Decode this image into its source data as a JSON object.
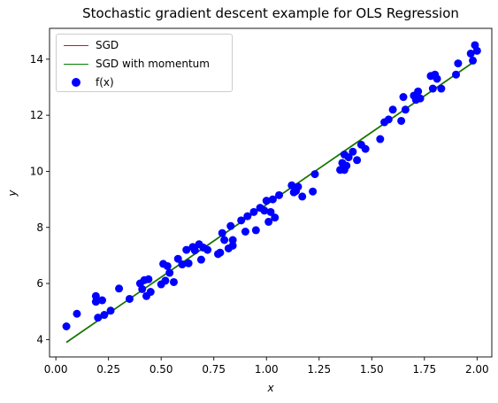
{
  "chart_data": {
    "type": "scatter",
    "title": "Stochastic gradient descent example for OLS Regression",
    "xlabel": "x",
    "ylabel": "y",
    "xlim": [
      -0.03,
      2.07
    ],
    "ylim": [
      3.38,
      15.1
    ],
    "x_ticks": [
      0.0,
      0.25,
      0.5,
      0.75,
      1.0,
      1.25,
      1.5,
      1.75,
      2.0
    ],
    "x_tick_labels": [
      "0.00",
      "0.25",
      "0.50",
      "0.75",
      "1.00",
      "1.25",
      "1.50",
      "1.75",
      "2.00"
    ],
    "y_ticks": [
      4,
      6,
      8,
      10,
      12,
      14
    ],
    "y_tick_labels": [
      "4",
      "6",
      "8",
      "10",
      "12",
      "14"
    ],
    "grid": false,
    "legend": {
      "placement": "upper-left",
      "entries": [
        "SGD",
        "SGD with momentum",
        "f(x)"
      ]
    },
    "series": [
      {
        "name": "SGD",
        "type": "line",
        "color": "#ff0000",
        "points": [
          [
            0.05,
            3.9
          ],
          [
            1.99,
            13.93
          ]
        ]
      },
      {
        "name": "SGD with momentum",
        "type": "line",
        "color": "#008000",
        "points": [
          [
            0.05,
            3.9
          ],
          [
            1.99,
            13.93
          ]
        ]
      },
      {
        "name": "f(x)",
        "type": "scatter",
        "color": "#0000ff",
        "points": [
          [
            0.05,
            4.47
          ],
          [
            0.1,
            4.92
          ],
          [
            0.19,
            5.55
          ],
          [
            0.19,
            5.35
          ],
          [
            0.2,
            4.78
          ],
          [
            0.22,
            5.4
          ],
          [
            0.23,
            4.88
          ],
          [
            0.26,
            5.03
          ],
          [
            0.3,
            5.82
          ],
          [
            0.35,
            5.45
          ],
          [
            0.4,
            6.0
          ],
          [
            0.41,
            5.8
          ],
          [
            0.42,
            6.12
          ],
          [
            0.43,
            5.55
          ],
          [
            0.44,
            6.15
          ],
          [
            0.45,
            5.7
          ],
          [
            0.5,
            5.97
          ],
          [
            0.51,
            6.7
          ],
          [
            0.52,
            6.1
          ],
          [
            0.53,
            6.62
          ],
          [
            0.54,
            6.38
          ],
          [
            0.56,
            6.05
          ],
          [
            0.58,
            6.88
          ],
          [
            0.6,
            6.68
          ],
          [
            0.62,
            7.2
          ],
          [
            0.63,
            6.72
          ],
          [
            0.65,
            7.3
          ],
          [
            0.66,
            7.18
          ],
          [
            0.68,
            7.4
          ],
          [
            0.7,
            7.28
          ],
          [
            0.69,
            6.85
          ],
          [
            0.72,
            7.2
          ],
          [
            0.77,
            7.05
          ],
          [
            0.78,
            7.1
          ],
          [
            0.79,
            7.8
          ],
          [
            0.8,
            7.55
          ],
          [
            0.82,
            7.25
          ],
          [
            0.83,
            8.05
          ],
          [
            0.84,
            7.55
          ],
          [
            0.84,
            7.35
          ],
          [
            0.88,
            8.25
          ],
          [
            0.9,
            7.85
          ],
          [
            0.91,
            8.4
          ],
          [
            0.94,
            8.55
          ],
          [
            0.95,
            7.9
          ],
          [
            0.97,
            8.7
          ],
          [
            0.99,
            8.6
          ],
          [
            1.0,
            8.95
          ],
          [
            1.01,
            8.2
          ],
          [
            1.02,
            8.55
          ],
          [
            1.03,
            9.0
          ],
          [
            1.04,
            8.35
          ],
          [
            1.06,
            9.15
          ],
          [
            1.12,
            9.5
          ],
          [
            1.13,
            9.25
          ],
          [
            1.14,
            9.3
          ],
          [
            1.15,
            9.45
          ],
          [
            1.17,
            9.1
          ],
          [
            1.22,
            9.28
          ],
          [
            1.23,
            9.9
          ],
          [
            1.35,
            10.05
          ],
          [
            1.36,
            10.3
          ],
          [
            1.37,
            10.05
          ],
          [
            1.37,
            10.6
          ],
          [
            1.38,
            10.2
          ],
          [
            1.39,
            10.5
          ],
          [
            1.41,
            10.7
          ],
          [
            1.43,
            10.4
          ],
          [
            1.45,
            10.95
          ],
          [
            1.47,
            10.8
          ],
          [
            1.54,
            11.15
          ],
          [
            1.56,
            11.75
          ],
          [
            1.58,
            11.85
          ],
          [
            1.6,
            12.2
          ],
          [
            1.64,
            11.8
          ],
          [
            1.65,
            12.65
          ],
          [
            1.66,
            12.2
          ],
          [
            1.7,
            12.7
          ],
          [
            1.71,
            12.55
          ],
          [
            1.72,
            12.85
          ],
          [
            1.73,
            12.6
          ],
          [
            1.78,
            13.4
          ],
          [
            1.79,
            12.95
          ],
          [
            1.8,
            13.45
          ],
          [
            1.81,
            13.3
          ],
          [
            1.83,
            12.95
          ],
          [
            1.9,
            13.45
          ],
          [
            1.91,
            13.85
          ],
          [
            1.97,
            14.2
          ],
          [
            1.98,
            13.95
          ],
          [
            1.99,
            14.5
          ],
          [
            2.0,
            14.3
          ]
        ]
      }
    ]
  }
}
